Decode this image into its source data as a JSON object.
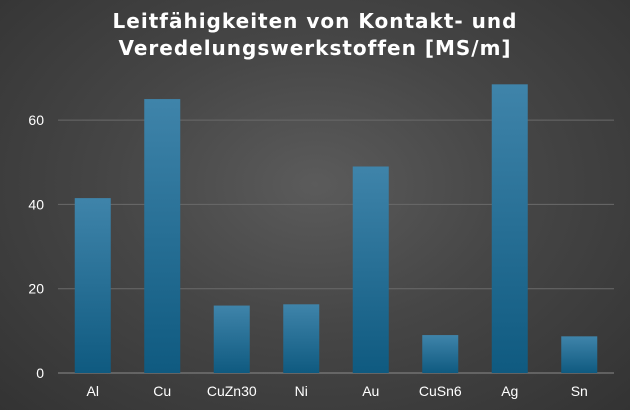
{
  "chart_data": {
    "type": "bar",
    "title_lines": [
      "Leitfähigkeiten von Kontakt- und",
      "Veredelungswerkstoffen [MS/m]"
    ],
    "categories": [
      "Al",
      "Cu",
      "CuZn30",
      "Ni",
      "Au",
      "CuSn6",
      "Ag",
      "Sn"
    ],
    "values": [
      41.5,
      65,
      16,
      16.3,
      49,
      9,
      68.5,
      8.7
    ],
    "yticks": [
      0,
      20,
      40,
      60
    ],
    "ylim": [
      0,
      70
    ],
    "grid": true,
    "colors": {
      "bar_top": "#3f84aa",
      "bar_bottom": "#0f5a80",
      "axis_text": "#ffffff",
      "grid": "#6a6a6a"
    }
  }
}
